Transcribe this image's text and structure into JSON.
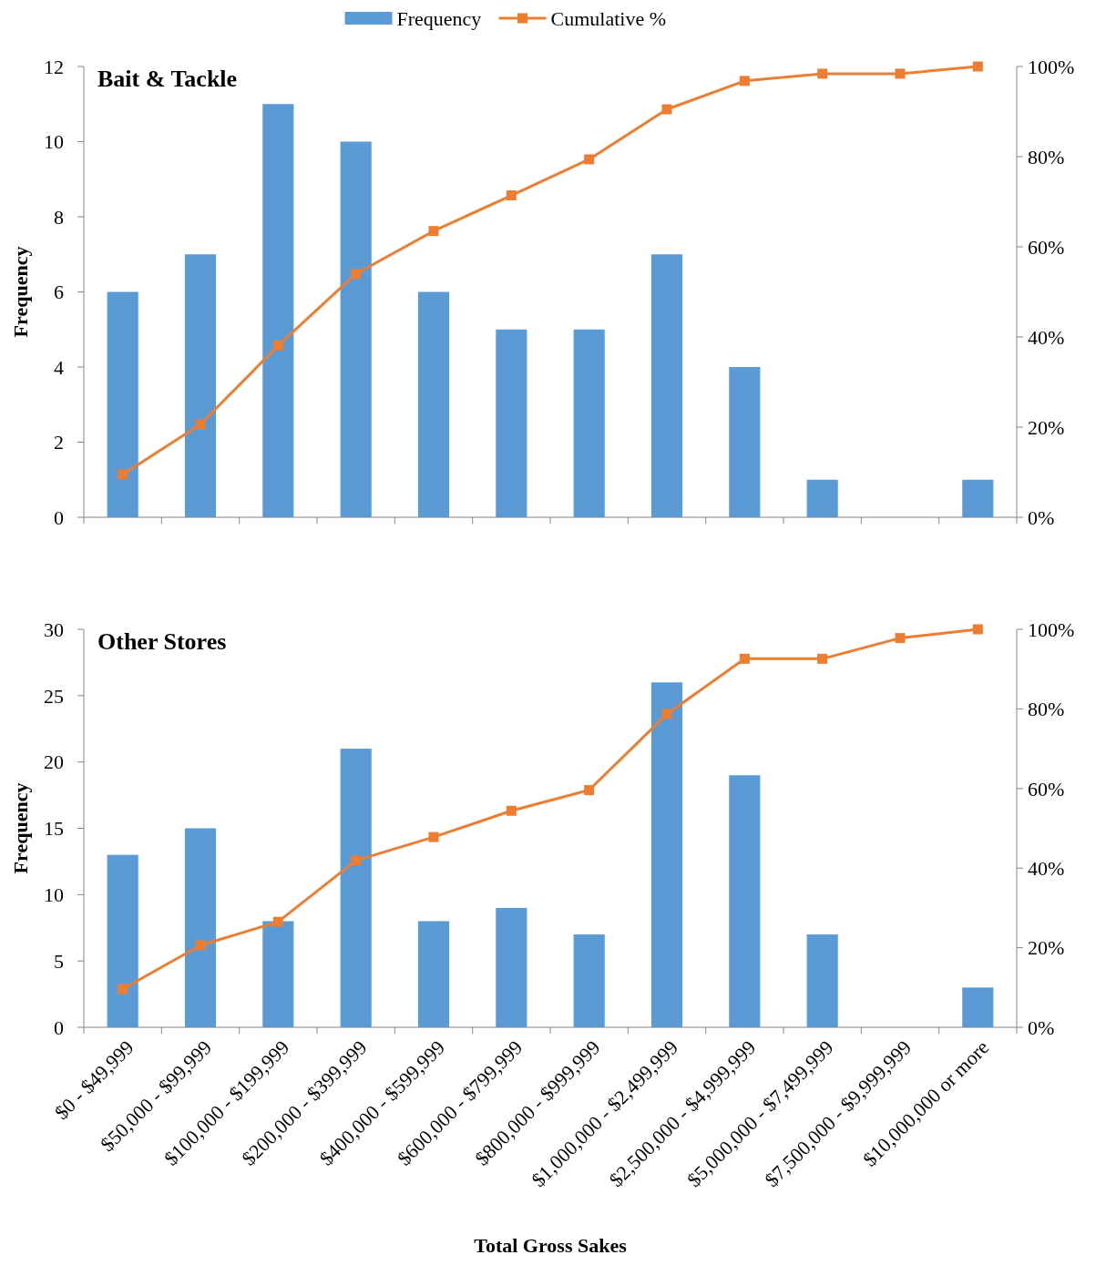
{
  "chart_data": [
    {
      "type": "bar",
      "title": "Bait & Tackle",
      "ylabel": "Frequency",
      "categories": [
        null,
        null,
        null,
        null,
        null,
        null,
        null,
        null,
        null,
        null,
        null,
        null
      ],
      "ylim": [
        0,
        12
      ],
      "yticks": [
        0,
        2,
        4,
        6,
        8,
        10,
        12
      ],
      "y2lim": [
        0,
        100
      ],
      "y2ticks": [
        {
          "value": 0,
          "label": "0%"
        },
        {
          "value": 20,
          "label": "20%"
        },
        {
          "value": 40,
          "label": "40%"
        },
        {
          "value": 60,
          "label": "60%"
        },
        {
          "value": 80,
          "label": "80%"
        },
        {
          "value": 100,
          "label": "100%"
        }
      ],
      "tick_labels": "y",
      "legend": "top",
      "series": [
        {
          "name": "Frequency",
          "color": "#5b9bd5",
          "values": [
            6,
            7,
            11,
            10,
            6,
            5,
            5,
            7,
            4,
            1,
            0,
            1
          ]
        },
        {
          "name": "Cumulative %",
          "type": "line",
          "axis": "y2",
          "color": "#ed7d31",
          "marker": "square",
          "values": [
            9.5,
            20.6,
            38.1,
            54.0,
            63.5,
            71.4,
            79.4,
            90.5,
            96.8,
            98.4,
            98.4,
            100
          ]
        }
      ]
    },
    {
      "type": "bar",
      "title": "Other Stores",
      "ylabel": "Frequency",
      "xlabel": "Total Gross Sakes",
      "categories": [
        "$0 - $49,999",
        "$50,000 - $99,999",
        "$100,000 - $199,999",
        "$200,000 - $399,999",
        "$400,000 - $599,999",
        "$600,000 - $799,999",
        "$800,000 - $999,999",
        "$1,000,000 - $2,499,999",
        "$2,500,000 - $4,999,999",
        "$5,000,000 - $7,499,999",
        "$7,500,000 - $9,999,999",
        "$10,000,000 or more"
      ],
      "ylim": [
        0,
        30
      ],
      "yticks": [
        0,
        5,
        10,
        15,
        20,
        25,
        30
      ],
      "y2lim": [
        0,
        100
      ],
      "y2ticks": [
        {
          "value": 0,
          "label": "0%"
        },
        {
          "value": 20,
          "label": "20%"
        },
        {
          "value": 40,
          "label": "40%"
        },
        {
          "value": 60,
          "label": "60%"
        },
        {
          "value": 80,
          "label": "80%"
        },
        {
          "value": 100,
          "label": "100%"
        }
      ],
      "series": [
        {
          "color": "#5b9bd5",
          "values": [
            13,
            15,
            8,
            21,
            8,
            9,
            7,
            26,
            19,
            7,
            0,
            3
          ]
        },
        {
          "type": "line",
          "axis": "y2",
          "color": "#ed7d31",
          "marker": "square",
          "values": [
            9.6,
            20.6,
            26.5,
            41.9,
            47.8,
            54.4,
            59.6,
            78.7,
            92.6,
            92.6,
            97.8,
            100
          ]
        }
      ]
    }
  ]
}
